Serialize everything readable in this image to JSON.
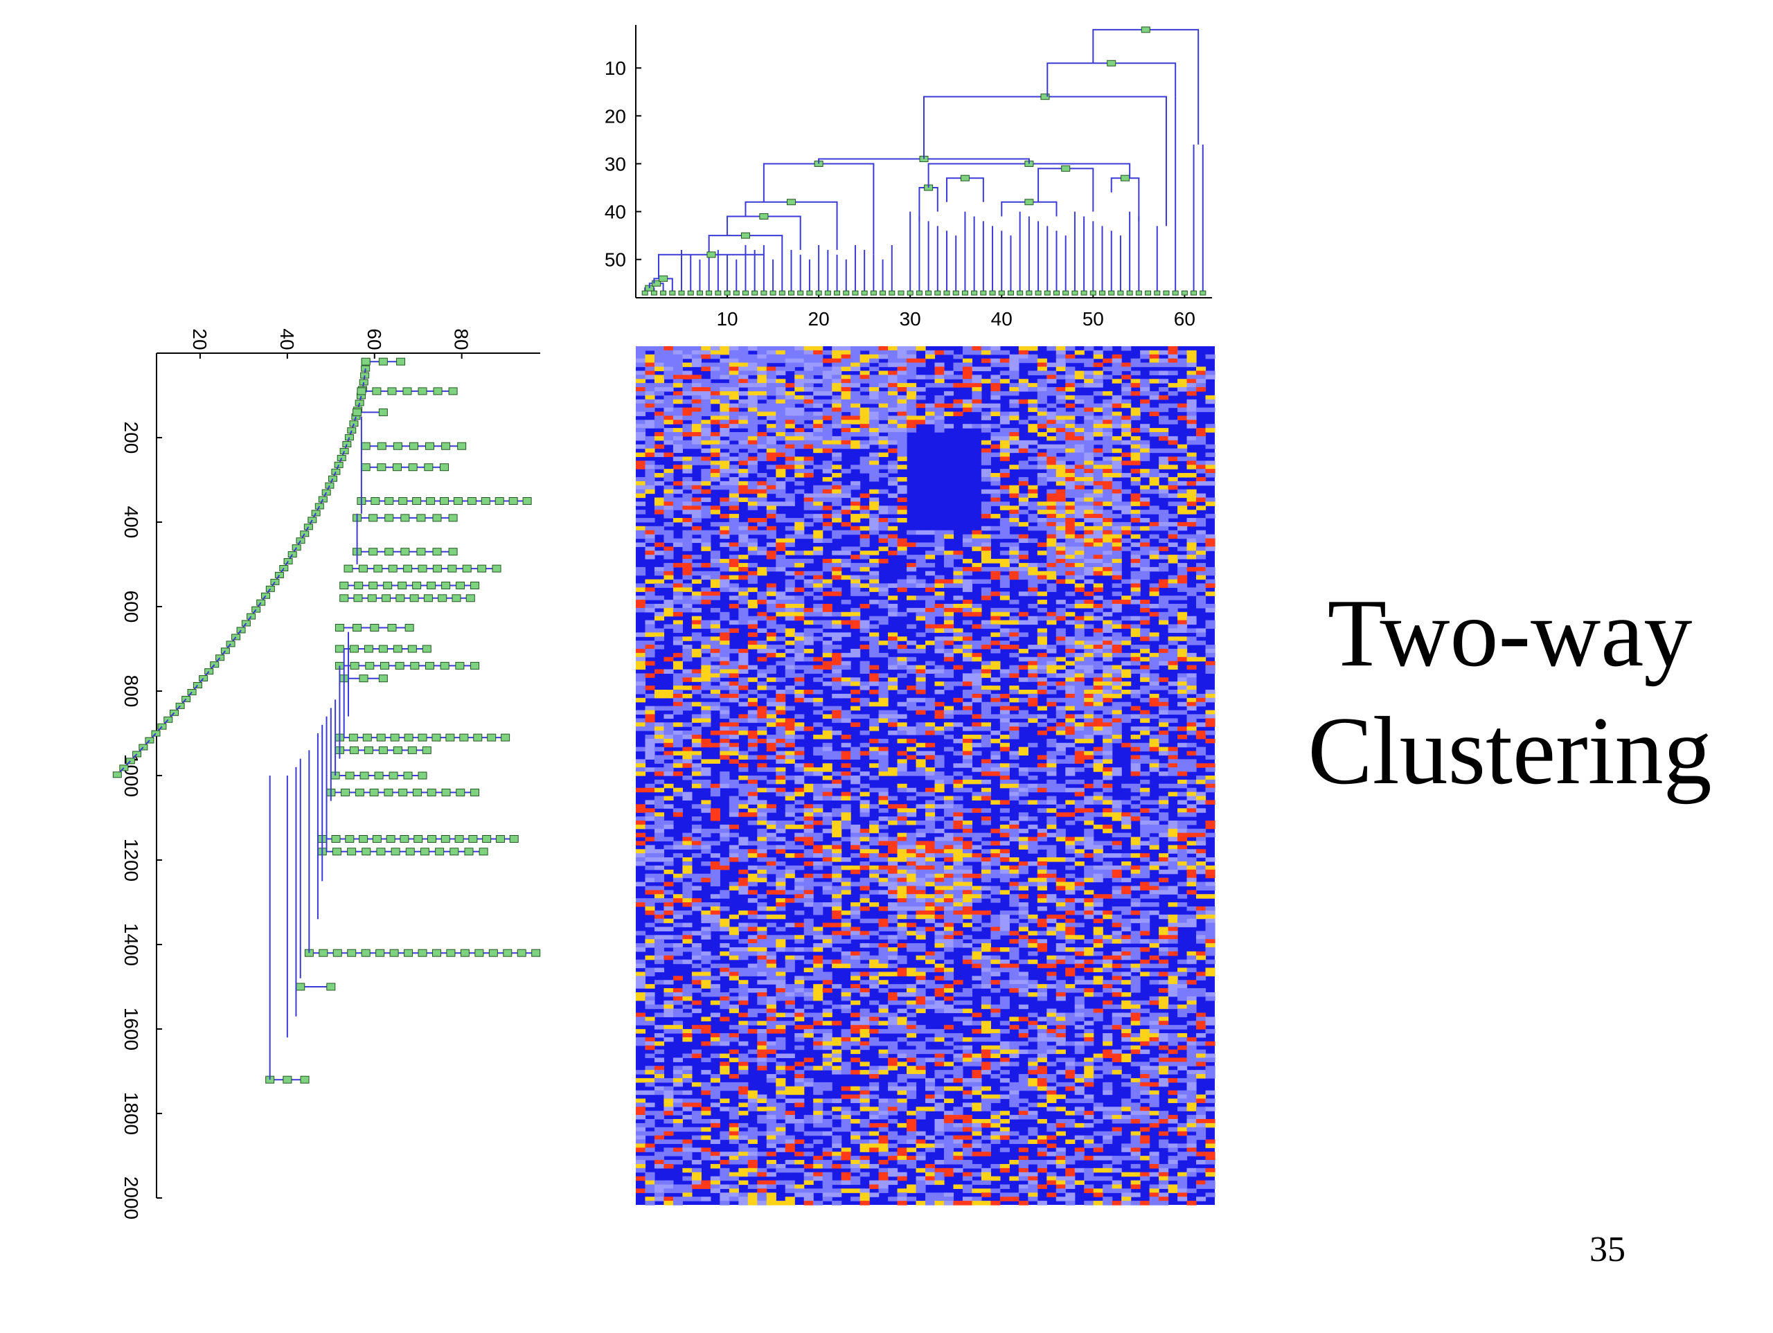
{
  "slide": {
    "title_line1": "Two-way",
    "title_line2": "Clustering",
    "page_number": "35"
  },
  "colors": {
    "dendrogram_line": "#3a3ad6",
    "node_fill": "#7fd27f",
    "heat_low": "#1a1ae6",
    "heat_mid": "#7a7aff",
    "heat_high1": "#ffd21a",
    "heat_high2": "#ff3a1a"
  },
  "chart_data": [
    {
      "type": "dendrogram",
      "orientation": "top",
      "x_ticks": [
        "10",
        "20",
        "30",
        "40",
        "50",
        "60"
      ],
      "x_tick_values": [
        10,
        20,
        30,
        40,
        50,
        60
      ],
      "xlim": [
        0,
        63
      ],
      "y_ticks": [
        "10",
        "20",
        "30",
        "40",
        "50"
      ],
      "y_tick_values": [
        10,
        20,
        30,
        40,
        50
      ],
      "ylim": [
        1,
        58
      ],
      "y_reversed": true,
      "leaves": 62
    },
    {
      "type": "dendrogram",
      "orientation": "left",
      "axis_rotated": true,
      "x_ticks": [
        "20",
        "40",
        "60",
        "80"
      ],
      "x_tick_values": [
        20,
        40,
        60,
        80
      ],
      "xlim": [
        10,
        98
      ],
      "y_ticks": [
        "200",
        "400",
        "600",
        "800",
        "1000",
        "1200",
        "1400",
        "1600",
        "1800",
        "2000"
      ],
      "y_tick_values": [
        200,
        400,
        600,
        800,
        1000,
        1200,
        1400,
        1600,
        1800,
        2000
      ],
      "ylim": [
        0,
        2000
      ]
    },
    {
      "type": "heatmap",
      "rows_approx": 2000,
      "columns": 62,
      "color_scale": [
        "blue",
        "light-blue",
        "yellow",
        "red"
      ]
    }
  ]
}
